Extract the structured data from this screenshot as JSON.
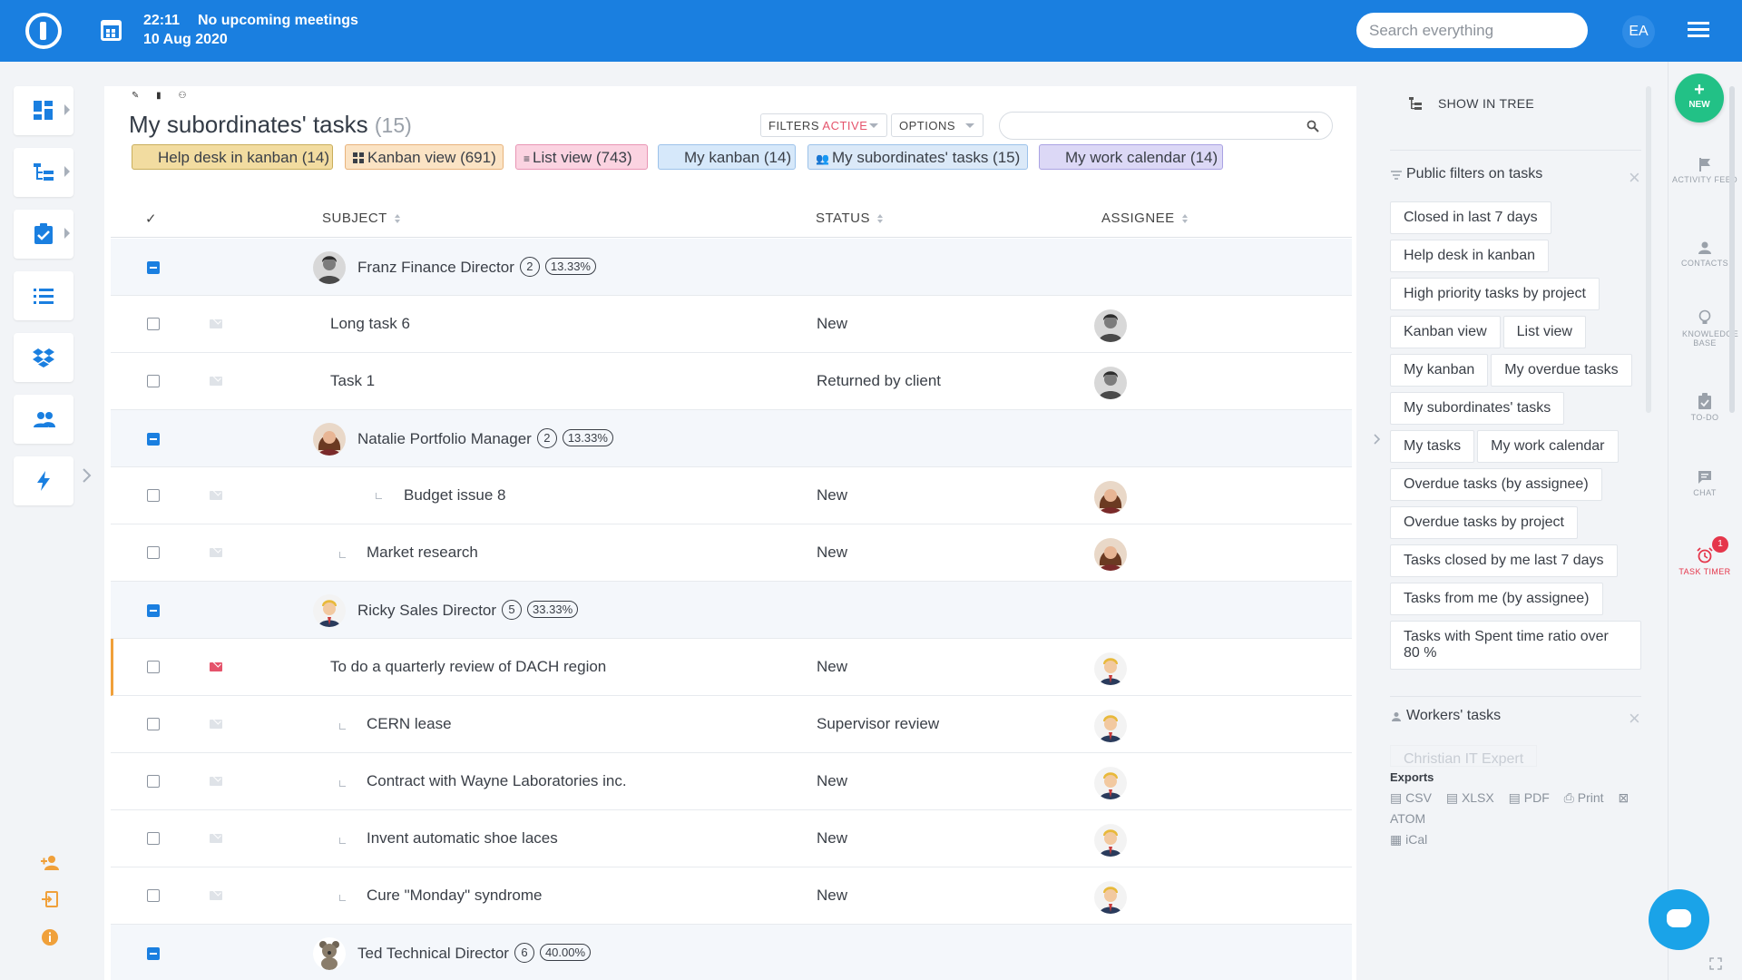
{
  "topbar": {
    "time": "22:11",
    "meetings": "No upcoming meetings",
    "date": "10 Aug 2020",
    "search_placeholder": "Search everything",
    "user_initials": "EA"
  },
  "colors": {
    "brand": "#1a7fe0",
    "new_button": "#22c186",
    "filters_active": "#e5536b",
    "timer": "#e5364b",
    "chat": "#1aa3e8"
  },
  "left_nav": [
    {
      "icon": "dashboard-icon",
      "has_arrow": true
    },
    {
      "icon": "tree-icon",
      "has_arrow": true
    },
    {
      "icon": "task-check-icon",
      "has_arrow": true
    },
    {
      "icon": "list-icon",
      "has_arrow": false
    },
    {
      "icon": "dropbox-icon",
      "has_arrow": false
    },
    {
      "icon": "users-icon",
      "has_arrow": false
    },
    {
      "icon": "lightning-icon",
      "has_arrow": false
    }
  ],
  "main": {
    "title": "My subordinates' tasks",
    "count": "(15)",
    "filters_label": "FILTERS",
    "filters_state": "ACTIVE",
    "options_label": "OPTIONS",
    "quick_filters": [
      "Help desk in kanban (14)",
      "Kanban view (691)",
      "List view (743)",
      "My kanban (14)",
      "My subordinates' tasks (15)",
      "My work calendar (14)"
    ],
    "columns": {
      "check": "✓",
      "subject": "SUBJECT",
      "status": "STATUS",
      "assignee": "ASSIGNEE"
    },
    "groups": [
      {
        "name": "Franz Finance Director",
        "count": "2",
        "percent": "13.33%",
        "tasks": [
          {
            "subject": "Long task 6",
            "status": "New",
            "level": 0
          },
          {
            "subject": "Task 1",
            "status": "Returned by client",
            "level": 0
          }
        ]
      },
      {
        "name": "Natalie Portfolio Manager",
        "count": "2",
        "percent": "13.33%",
        "tasks": [
          {
            "subject": "Budget issue 8",
            "status": "New",
            "level": 2
          },
          {
            "subject": "Market research",
            "status": "New",
            "level": 1
          }
        ]
      },
      {
        "name": "Ricky Sales Director",
        "count": "5",
        "percent": "33.33%",
        "tasks": [
          {
            "subject": "To do a quarterly review of DACH region",
            "status": "New",
            "level": 0
          },
          {
            "subject": "CERN lease",
            "status": "Supervisor review",
            "level": 1
          },
          {
            "subject": "Contract with Wayne Laboratories inc.",
            "status": "New",
            "level": 1
          },
          {
            "subject": "Invent automatic shoe laces",
            "status": "New",
            "level": 1
          },
          {
            "subject": "Cure \"Monday\" syndrome",
            "status": "New",
            "level": 1
          }
        ]
      },
      {
        "name": "Ted Technical Director",
        "count": "6",
        "percent": "40.00%",
        "tasks": []
      }
    ]
  },
  "right_panel": {
    "show_in_tree": "SHOW IN TREE",
    "public_filters_title": "Public filters on tasks",
    "public_filters": [
      "Closed in last 7 days",
      "Help desk in kanban",
      "High priority tasks by project",
      "Kanban view",
      "List view",
      "My kanban",
      "My overdue tasks",
      "My subordinates' tasks",
      "My tasks",
      "My work calendar",
      "Overdue tasks (by assignee)",
      "Overdue tasks by project",
      "Tasks closed by me last 7 days",
      "Tasks from me (by assignee)",
      "Tasks with Spent time ratio over 80 %"
    ],
    "workers_title": "Workers' tasks",
    "workers_first": "Christian IT Expert",
    "exports_title": "Exports",
    "exports": [
      "CSV",
      "XLSX",
      "PDF",
      "Print",
      "ATOM",
      "iCal"
    ]
  },
  "right_strip": {
    "new_label": "NEW",
    "items": [
      {
        "label": "ACTIVITY FEED",
        "icon": "flag-icon"
      },
      {
        "label": "CONTACTS",
        "icon": "person-icon"
      },
      {
        "label": "KNOWLEDGE BASE",
        "icon": "lightbulb-icon"
      },
      {
        "label": "TO-DO",
        "icon": "clipboard-icon"
      },
      {
        "label": "CHAT",
        "icon": "chat-icon"
      },
      {
        "label": "TASK TIMER",
        "icon": "alarm-icon"
      }
    ],
    "timer_badge": "1"
  }
}
